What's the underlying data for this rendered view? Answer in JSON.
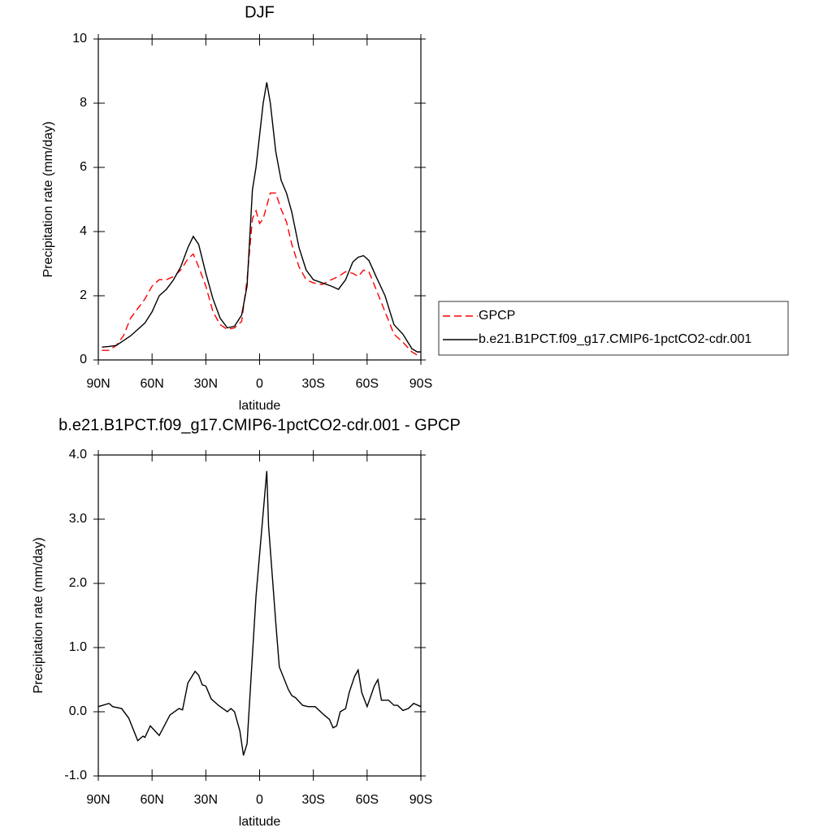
{
  "chart_data": [
    {
      "type": "line",
      "title": "DJF",
      "xlabel": "latitude",
      "ylabel": "Precipitation rate (mm/day)",
      "x": [
        88,
        84,
        80,
        76,
        72,
        68,
        64,
        60,
        56,
        52,
        48,
        44,
        40,
        37,
        34,
        30,
        26,
        22,
        18,
        14,
        10,
        7,
        4,
        2,
        0,
        -2,
        -4,
        -6,
        -9,
        -12,
        -15,
        -18,
        -22,
        -26,
        -30,
        -35,
        -40,
        -44,
        -48,
        -52,
        -55,
        -58,
        -61,
        -65,
        -70,
        -75,
        -80,
        -85,
        -88,
        -90
      ],
      "xlim": [
        90,
        -90
      ],
      "xticks": [
        {
          "value": 90,
          "label": "90N"
        },
        {
          "value": 60,
          "label": "60N"
        },
        {
          "value": 30,
          "label": "30N"
        },
        0,
        {
          "value": -30,
          "label": "30S"
        },
        {
          "value": -60,
          "label": "60S"
        },
        {
          "value": -90,
          "label": "90S"
        }
      ],
      "ylim": [
        0,
        10
      ],
      "yticks": [
        0,
        2,
        4,
        6,
        8,
        10
      ],
      "legend": "outside right",
      "series": [
        {
          "name": "GPCP",
          "color": "#ff0000",
          "linestyle": "dashed",
          "values": [
            0.3,
            0.3,
            0.45,
            0.75,
            1.3,
            1.6,
            1.9,
            2.3,
            2.5,
            2.5,
            2.6,
            2.8,
            3.15,
            3.3,
            2.9,
            2.3,
            1.5,
            1.1,
            0.95,
            1.0,
            1.2,
            2.5,
            4.4,
            4.65,
            4.25,
            4.4,
            4.8,
            5.2,
            5.2,
            4.7,
            4.3,
            3.6,
            2.9,
            2.5,
            2.4,
            2.35,
            2.5,
            2.6,
            2.75,
            2.7,
            2.6,
            2.8,
            2.75,
            2.2,
            1.5,
            0.8,
            0.55,
            0.25,
            0.15,
            0.15
          ]
        },
        {
          "name": "b.e21.B1PCT.f09_g17.CMIP6-1pctCO2-cdr.001",
          "color": "#000000",
          "linestyle": "solid",
          "values": [
            0.4,
            0.42,
            0.45,
            0.6,
            0.75,
            0.95,
            1.15,
            1.5,
            2.0,
            2.2,
            2.5,
            2.9,
            3.5,
            3.85,
            3.6,
            2.7,
            1.9,
            1.3,
            1.0,
            1.05,
            1.4,
            2.3,
            5.3,
            6.0,
            7.0,
            8.0,
            8.65,
            8.0,
            6.5,
            5.6,
            5.2,
            4.6,
            3.5,
            2.8,
            2.5,
            2.4,
            2.3,
            2.2,
            2.5,
            3.05,
            3.2,
            3.25,
            3.1,
            2.6,
            2.0,
            1.1,
            0.8,
            0.35,
            0.25,
            0.25
          ]
        }
      ]
    },
    {
      "type": "line",
      "title": "b.e21.B1PCT.f09_g17.CMIP6-1pctCO2-cdr.001 - GPCP",
      "xlabel": "latitude",
      "ylabel": "Precipitation rate (mm/day)",
      "x": [
        90,
        84,
        82,
        77,
        73,
        68,
        65,
        64,
        61,
        59,
        56,
        50,
        45,
        43,
        40,
        36,
        34,
        32,
        30,
        27,
        23,
        18,
        16,
        14,
        11,
        9,
        7,
        2,
        -4,
        -5,
        -9,
        -11,
        -16,
        -18,
        -20,
        -24,
        -27,
        -31,
        -36,
        -39,
        -41,
        -43,
        -45,
        -48,
        -50,
        -53,
        -55,
        -57,
        -60,
        -64,
        -66,
        -68,
        -72,
        -75,
        -77,
        -80,
        -83,
        -86,
        -90
      ],
      "xlim": [
        90,
        -90
      ],
      "xticks": [
        {
          "value": 90,
          "label": "90N"
        },
        {
          "value": 60,
          "label": "60N"
        },
        {
          "value": 30,
          "label": "30N"
        },
        0,
        {
          "value": -30,
          "label": "30S"
        },
        {
          "value": -60,
          "label": "60S"
        },
        {
          "value": -90,
          "label": "90S"
        }
      ],
      "ylim": [
        -1,
        4
      ],
      "yticks": [
        {
          "value": -1,
          "label": "-1.0"
        },
        {
          "value": 0,
          "label": "0.0"
        },
        {
          "value": 1,
          "label": "1.0"
        },
        {
          "value": 2,
          "label": "2.0"
        },
        {
          "value": 3,
          "label": "3.0"
        },
        {
          "value": 4,
          "label": "4.0"
        }
      ],
      "color": "#000000",
      "linestyle": "solid",
      "values": [
        0.08,
        0.13,
        0.08,
        0.05,
        -0.1,
        -0.45,
        -0.38,
        -0.4,
        -0.22,
        -0.28,
        -0.37,
        -0.05,
        0.05,
        0.03,
        0.45,
        0.63,
        0.57,
        0.42,
        0.4,
        0.2,
        0.1,
        0,
        0.05,
        0,
        -0.3,
        -0.68,
        -0.5,
        1.8,
        3.75,
        2.9,
        1.4,
        0.7,
        0.35,
        0.25,
        0.22,
        0.1,
        0.08,
        0.08,
        -0.05,
        -0.12,
        -0.25,
        -0.22,
        0.0,
        0.05,
        0.3,
        0.55,
        0.65,
        0.3,
        0.08,
        0.4,
        0.5,
        0.18,
        0.18,
        0.1,
        0.1,
        0.02,
        0.05,
        0.13,
        0.08
      ]
    }
  ]
}
